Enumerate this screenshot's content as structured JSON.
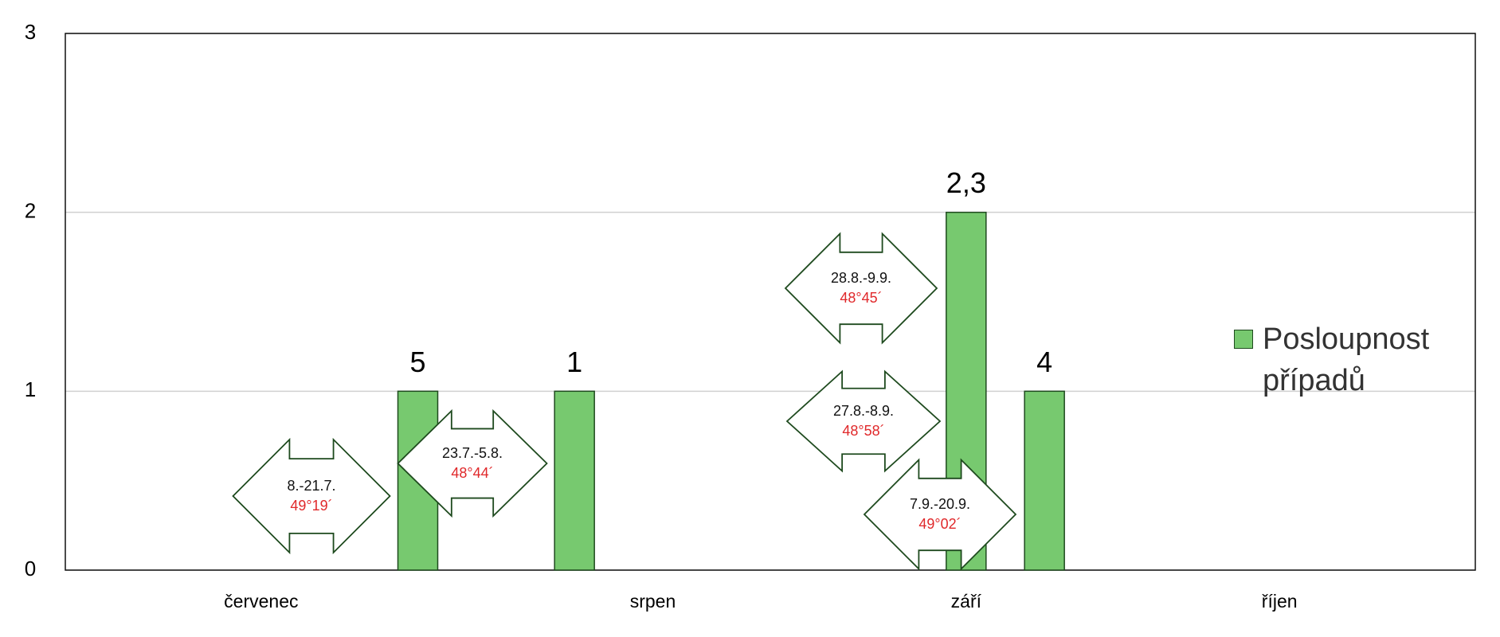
{
  "chart_data": {
    "type": "bar",
    "categories": [
      null,
      null,
      "červenec",
      null,
      null,
      null,
      null,
      "srpen",
      null,
      null,
      null,
      "září",
      null,
      null,
      null,
      "říjen",
      null,
      null
    ],
    "series": [
      {
        "name": "Posloupnost případů",
        "color": "#77c96f",
        "values": [
          null,
          null,
          null,
          null,
          1,
          null,
          1,
          null,
          null,
          null,
          null,
          2,
          1,
          null,
          null,
          null,
          null,
          null
        ],
        "labels": [
          null,
          null,
          null,
          null,
          "5",
          null,
          "1",
          null,
          null,
          null,
          null,
          "2,3",
          "4",
          null,
          null,
          null,
          null,
          null
        ]
      }
    ],
    "ylim": [
      0,
      3
    ],
    "yticks": [
      0,
      1,
      2,
      3
    ],
    "grid": true,
    "legend": "right",
    "arrows": [
      {
        "dates": "8.-21.7.",
        "angle": "49°19´"
      },
      {
        "dates": "23.7.-5.8.",
        "angle": "48°44´"
      },
      {
        "dates": "28.8.-9.9.",
        "angle": "48°45´"
      },
      {
        "dates": "27.8.-8.9.",
        "angle": "48°58´"
      },
      {
        "dates": "7.9.-20.9.",
        "angle": "49°02´"
      }
    ]
  }
}
